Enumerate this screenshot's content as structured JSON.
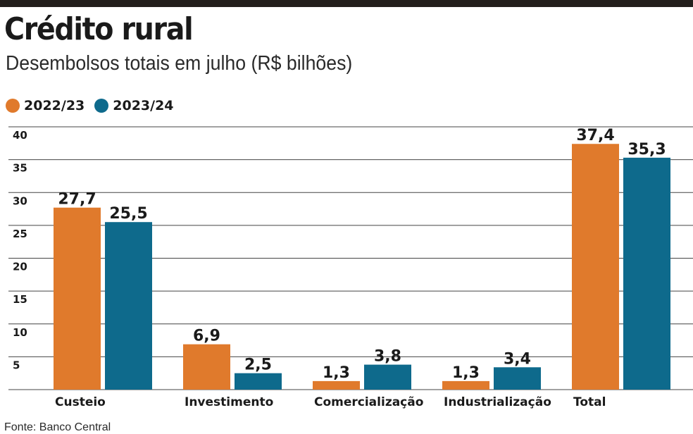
{
  "header": {
    "title": "Crédito rural",
    "subtitle": "Desembolsos totais em julho (R$ bilhões)"
  },
  "legend": [
    {
      "label": "2022/23",
      "color": "#e07a2c"
    },
    {
      "label": "2023/24",
      "color": "#0e6a8c"
    }
  ],
  "footer": {
    "source": "Fonte: Banco Central"
  },
  "chart_data": {
    "type": "bar",
    "title": "Crédito rural",
    "subtitle": "Desembolsos totais em julho (R$ bilhões)",
    "categories": [
      "Custeio",
      "Investimento",
      "Comercialização",
      "Industrialização",
      "Total"
    ],
    "series": [
      {
        "name": "2022/23",
        "color": "#e07a2c",
        "values": [
          27.7,
          6.9,
          1.3,
          1.3,
          37.4
        ],
        "labels": [
          "27,7",
          "6,9",
          "1,3",
          "1,3",
          "37,4"
        ]
      },
      {
        "name": "2023/24",
        "color": "#0e6a8c",
        "values": [
          25.5,
          2.5,
          3.8,
          3.4,
          35.3
        ],
        "labels": [
          "25,5",
          "2,5",
          "3,8",
          "3,4",
          "35,3"
        ]
      }
    ],
    "yticks": [
      5,
      10,
      15,
      20,
      25,
      30,
      35,
      40
    ],
    "ylim": [
      0,
      40
    ],
    "grid": true,
    "legend_position": "top-left",
    "xlabel": "",
    "ylabel": ""
  }
}
